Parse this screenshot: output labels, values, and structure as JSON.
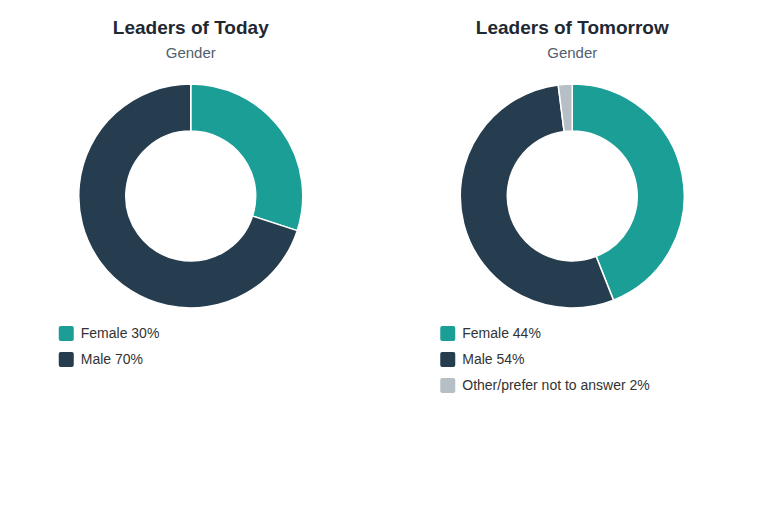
{
  "chart_data": [
    {
      "type": "donut",
      "title": "Leaders of Today",
      "subtitle": "Gender",
      "categories": [
        "Female 30%",
        "Male 70%"
      ],
      "values": [
        30,
        70
      ],
      "colors": [
        "#1a9e96",
        "#253d4e"
      ],
      "legend": "bottom"
    },
    {
      "type": "donut",
      "title": "Leaders of Tomorrow",
      "subtitle": "Gender",
      "categories": [
        "Female 44%",
        "Male 54%",
        "Other/prefer not to answer 2%"
      ],
      "values": [
        44,
        54,
        2
      ],
      "colors": [
        "#1a9e96",
        "#253d4e",
        "#b5bfc5"
      ],
      "legend": "bottom"
    }
  ]
}
